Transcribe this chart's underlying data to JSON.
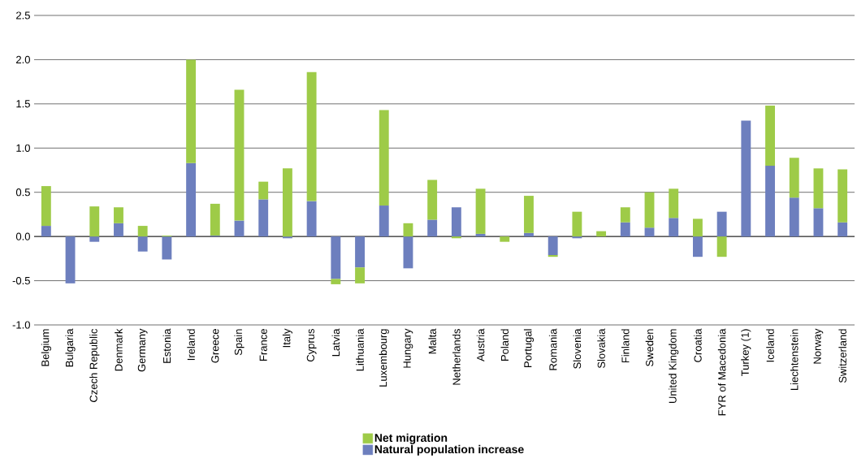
{
  "chart_data": {
    "type": "bar",
    "stacked": true,
    "categories": [
      "Belgium",
      "Bulgaria",
      "Czech Republic",
      "Denmark",
      "Germany",
      "Estonia",
      "Ireland",
      "Greece",
      "Spain",
      "France",
      "Italy",
      "Cyprus",
      "Latvia",
      "Lithuania",
      "Luxembourg",
      "Hungary",
      "Malta",
      "Netherlands",
      "Austria",
      "Poland",
      "Portugal",
      "Romania",
      "Slovenia",
      "Slovakia",
      "Finland",
      "Sweden",
      "United Kingdom",
      "Croatia",
      "FYR of Macedonia",
      "Turkey (1)",
      "Iceland",
      "Liechtenstein",
      "Norway",
      "Switzerland"
    ],
    "series": [
      {
        "name": "Natural population increase",
        "color": "#6d7fbe",
        "values": [
          0.12,
          -0.53,
          -0.06,
          0.15,
          -0.17,
          -0.26,
          0.83,
          0.01,
          0.18,
          0.42,
          -0.02,
          0.4,
          -0.48,
          -0.35,
          0.35,
          -0.36,
          0.19,
          0.33,
          0.03,
          0,
          0.04,
          -0.21,
          -0.02,
          0,
          0.16,
          0.1,
          0.21,
          -0.23,
          0.28,
          1.31,
          0.8,
          0.44,
          0.32,
          0.16
        ]
      },
      {
        "name": "Net migration",
        "color": "#9ecb48",
        "values": [
          0.45,
          0,
          0.34,
          0.18,
          0.12,
          0.01,
          1.17,
          0.36,
          1.48,
          0.2,
          0.77,
          1.46,
          -0.06,
          -0.18,
          1.08,
          0.15,
          0.45,
          -0.02,
          0.51,
          -0.06,
          0.42,
          -0.02,
          0.28,
          0.06,
          0.17,
          0.4,
          0.33,
          0.2,
          -0.23,
          0,
          0.68,
          0.45,
          0.45,
          0.6
        ]
      }
    ],
    "ylim": [
      -1.0,
      2.5
    ],
    "yticks": [
      {
        "value": -1.0,
        "label": "-1.0"
      },
      {
        "value": -0.5,
        "label": "-0.5"
      },
      {
        "value": 0,
        "label": "0.0"
      },
      {
        "value": 0.5,
        "label": "0.5"
      },
      {
        "value": 1.0,
        "label": "1.0"
      },
      {
        "value": 1.5,
        "label": "1.5"
      },
      {
        "value": 2.0,
        "label": "2.0"
      },
      {
        "value": 2.5,
        "label": "2.5"
      }
    ],
    "grid": "y",
    "legend": "bottom"
  }
}
